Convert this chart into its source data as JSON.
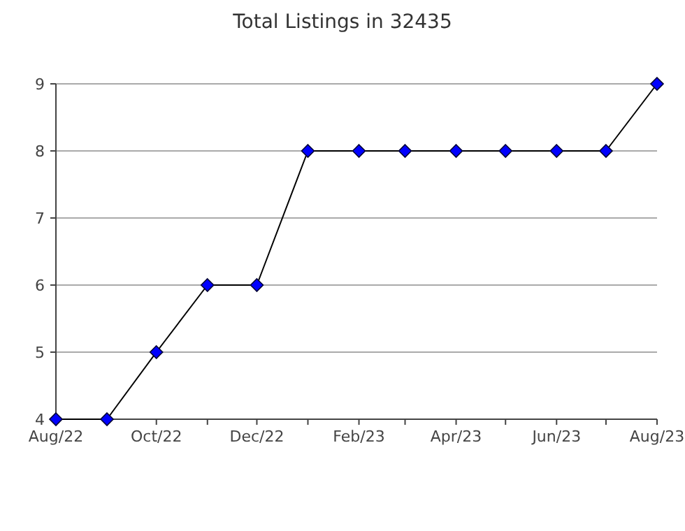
{
  "chart_data": {
    "type": "line",
    "title": "Total Listings in 32435",
    "x": [
      "2022-08",
      "2022-09",
      "2022-10",
      "2022-11",
      "2022-12",
      "2023-01",
      "2023-02",
      "2023-03",
      "2023-04",
      "2023-05",
      "2023-06",
      "2023-07",
      "2023-08"
    ],
    "series": [
      {
        "color": "#0000ff",
        "values": [
          4,
          4,
          5,
          6,
          6,
          8,
          8,
          8,
          8,
          8,
          8,
          8,
          9
        ]
      }
    ],
    "xlim": [
      "2022-08",
      "2023-08"
    ],
    "xticks": [
      {
        "value": "2022-08",
        "label": "Aug/22"
      },
      {
        "value": "2022-09",
        "label": null
      },
      {
        "value": "2022-10",
        "label": "Oct/22"
      },
      {
        "value": "2022-11",
        "label": null
      },
      {
        "value": "2022-12",
        "label": "Dec/22"
      },
      {
        "value": "2023-01",
        "label": null
      },
      {
        "value": "2023-02",
        "label": "Feb/23"
      },
      {
        "value": "2023-03",
        "label": null
      },
      {
        "value": "2023-04",
        "label": "Apr/23"
      },
      {
        "value": "2023-05",
        "label": null
      },
      {
        "value": "2023-06",
        "label": "Jun/23"
      },
      {
        "value": "2023-07",
        "label": null
      },
      {
        "value": "2023-08",
        "label": "Aug/23"
      }
    ],
    "ylim": [
      4,
      9
    ],
    "yticks": [
      4,
      5,
      6,
      7,
      8,
      9
    ],
    "grid": "y",
    "marker": "diamond",
    "line_style": "solid"
  }
}
